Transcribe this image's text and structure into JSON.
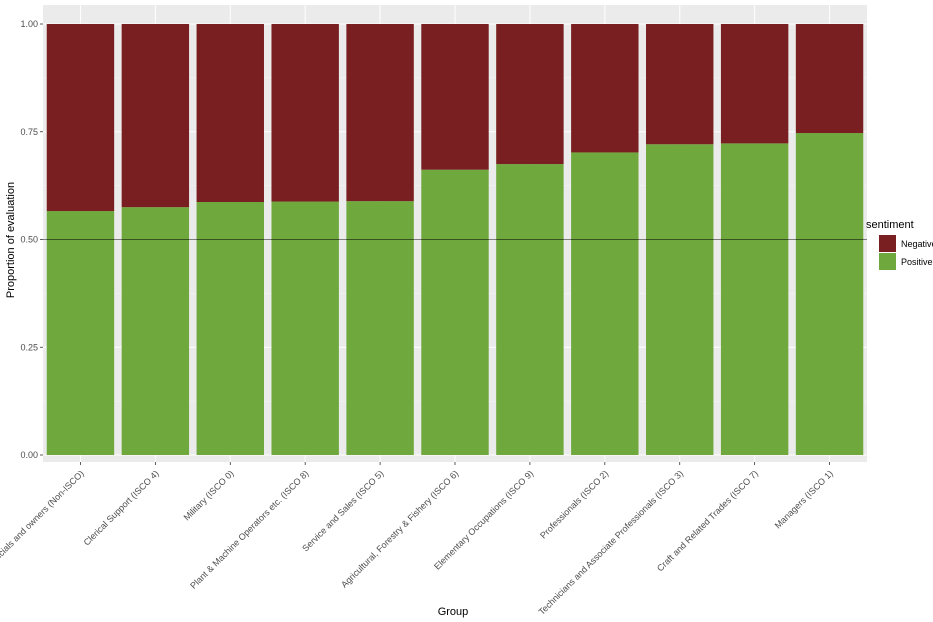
{
  "chart_data": {
    "type": "bar",
    "stacked": true,
    "xlabel": "Group",
    "ylabel": "Proportion of evaluation",
    "ylim": [
      0,
      1
    ],
    "yticks": [
      "0.00",
      "0.25",
      "0.50",
      "0.75",
      "1.00"
    ],
    "reference_line": 0.5,
    "grid": true,
    "legend_position": "right",
    "legend_title": "sentiment",
    "categories": [
      "...c officials and owners (Non-ISCO)",
      "Clerical Support (ISCO 4)",
      "Military (ISCO 0)",
      "Plant & Machine Operators etc. (ISCO 8)",
      "Service and Sales (ISCO 5)",
      "Agricultural, Forestry & Fishery (ISCO 6)",
      "Elementary Occupations (ISCO 9)",
      "Professionals (ISCO 2)",
      "Technicians and Associate Professionals (ISCO 3)",
      "Craft and Related Trades (ISCO 7)",
      "Managers (ISCO 1)"
    ],
    "series": [
      {
        "name": "Negative",
        "color": "#7a1f21",
        "values": [
          0.434,
          0.425,
          0.413,
          0.412,
          0.411,
          0.338,
          0.325,
          0.298,
          0.279,
          0.277,
          0.253
        ]
      },
      {
        "name": "Positive",
        "color": "#6fa83d",
        "values": [
          0.566,
          0.575,
          0.587,
          0.588,
          0.589,
          0.662,
          0.675,
          0.702,
          0.721,
          0.723,
          0.747
        ]
      }
    ]
  }
}
